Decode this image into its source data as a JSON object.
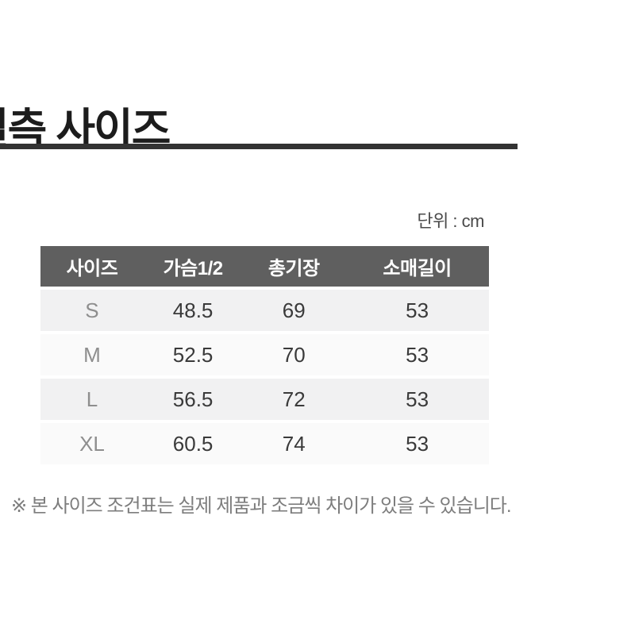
{
  "page": {
    "title": "실측 사이즈",
    "unit_label": "단위 : cm",
    "footnote": "※ 본 사이즈 조건표는 실제 제품과 조금씩 차이가 있을 수 있습니다.",
    "colors": {
      "title_text": "#1c1c1c",
      "divider": "#333333",
      "header_bg": "#5f5f5f",
      "header_text": "#ffffff",
      "row_odd_bg": "#f1f1f2",
      "row_even_bg": "#fafafa",
      "size_text": "#8e8e8e",
      "value_text": "#3a3a3a",
      "unit_text": "#4a4a4a",
      "footnote_text": "#7d7d7d"
    }
  },
  "size_table": {
    "columns": [
      "사이즈",
      "가슴1/2",
      "총기장",
      "소매길이"
    ],
    "rows": [
      {
        "size": "S",
        "values": [
          "48.5",
          "69",
          "53"
        ]
      },
      {
        "size": "M",
        "values": [
          "52.5",
          "70",
          "53"
        ]
      },
      {
        "size": "L",
        "values": [
          "56.5",
          "72",
          "53"
        ]
      },
      {
        "size": "XL",
        "values": [
          "60.5",
          "74",
          "53"
        ]
      }
    ]
  }
}
